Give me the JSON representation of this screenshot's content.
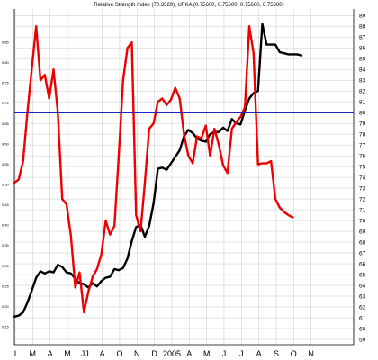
{
  "chart_data": {
    "type": "line",
    "title": "Relative Strength Index (70.3529), UFKA (0.75600, 0.75600, 0.75600, 0.75600)",
    "x_labels": [
      "I",
      "M",
      "A",
      "M",
      "JJ",
      "A",
      "O",
      "N",
      "D",
      "2005",
      "A",
      "M",
      "J",
      "J",
      "A",
      "S",
      "O",
      "N"
    ],
    "y_left_ticks": [
      "0.15",
      "0.20",
      "0.25",
      "0.30",
      "0.35",
      "0.40",
      "0.45",
      "0.50",
      "0.55",
      "0.60",
      "0.65",
      "0.70",
      "0.75",
      "0.80",
      "0.85"
    ],
    "y_right_ticks": [
      "59",
      "60",
      "61",
      "62",
      "63",
      "64",
      "65",
      "66",
      "67",
      "68",
      "69",
      "70",
      "71",
      "72",
      "73",
      "74",
      "75",
      "76",
      "77",
      "78",
      "79",
      "80",
      "81",
      "82",
      "83",
      "84",
      "85",
      "86",
      "87",
      "88",
      "89"
    ],
    "y_right_range": [
      58.5,
      89.6
    ],
    "x_range": [
      0,
      19.5
    ],
    "grid": true,
    "reference_line": {
      "value": 80,
      "color": "#2222bb"
    },
    "series": [
      {
        "color": "#000000",
        "x": [
          0,
          0.25,
          0.5,
          0.75,
          1.0,
          1.25,
          1.5,
          1.75,
          2.0,
          2.25,
          2.5,
          2.75,
          3.0,
          3.25,
          3.5,
          3.75,
          4.0,
          4.25,
          4.5,
          4.75,
          5.0,
          5.25,
          5.5,
          5.75,
          6.0,
          6.25,
          6.5,
          6.75,
          7.0,
          7.25,
          7.5,
          7.75,
          8.0,
          8.25,
          8.5,
          8.75,
          9.0,
          9.25,
          9.5,
          9.75,
          10.0,
          10.25,
          10.5,
          10.75,
          11.0,
          11.25,
          11.5,
          11.75,
          12.0,
          12.25,
          12.5,
          12.75,
          13.0,
          13.25,
          13.5,
          13.75,
          14.0,
          14.25,
          14.5,
          14.75,
          15.0,
          15.25,
          15.5,
          15.75,
          16.0,
          16.25,
          16.5
        ],
        "values": [
          61.1,
          61.2,
          61.5,
          62.4,
          63.5,
          64.7,
          65.3,
          65.1,
          65.3,
          65.2,
          65.9,
          65.7,
          65.2,
          65.1,
          64.6,
          64.2,
          64.1,
          63.8,
          64.2,
          63.9,
          64.4,
          64.7,
          64.8,
          65.5,
          65.4,
          65.6,
          66.5,
          68.1,
          69.4,
          69.6,
          68.5,
          69.5,
          71.6,
          74.8,
          74.9,
          74.7,
          75.3,
          75.9,
          76.5,
          77.8,
          78.4,
          78.1,
          77.6,
          77.4,
          77.3,
          78.0,
          78.2,
          78.2,
          78.6,
          78.3,
          79.4,
          79.0,
          78.9,
          80.2,
          81.3,
          81.8,
          82.0,
          88.2,
          86.3,
          86.3,
          86.3,
          85.6,
          85.5,
          85.4,
          85.4,
          85.4,
          85.3
        ]
      },
      {
        "color": "#ee0000",
        "x": [
          0,
          0.25,
          0.5,
          0.75,
          1.0,
          1.25,
          1.5,
          1.75,
          2.0,
          2.25,
          2.5,
          2.75,
          3.0,
          3.25,
          3.5,
          3.75,
          4.0,
          4.25,
          4.5,
          4.75,
          5.0,
          5.25,
          5.5,
          5.75,
          6.0,
          6.25,
          6.5,
          6.75,
          7.0,
          7.25,
          7.5,
          7.75,
          8.0,
          8.25,
          8.5,
          8.75,
          9.0,
          9.25,
          9.5,
          9.75,
          10.0,
          10.25,
          10.5,
          10.75,
          11.0,
          11.25,
          11.5,
          11.75,
          12.0,
          12.25,
          12.5,
          12.75,
          13.0,
          13.25,
          13.5,
          13.75,
          14.0,
          14.25,
          14.5,
          14.75,
          15.0,
          15.25,
          15.5,
          15.75,
          16.0
        ],
        "values": [
          73.5,
          73.8,
          75.5,
          80.0,
          84.0,
          88.0,
          83.0,
          83.5,
          81.3,
          84.0,
          80.0,
          72.0,
          71.5,
          68.6,
          63.8,
          65.2,
          61.5,
          63.4,
          64.8,
          65.5,
          66.9,
          70.0,
          68.7,
          69.5,
          76.0,
          83.0,
          86.0,
          86.5,
          70.5,
          69.0,
          73.5,
          78.5,
          79.0,
          81.0,
          81.3,
          80.7,
          81.2,
          82.3,
          81.3,
          78.0,
          76.0,
          75.3,
          77.8,
          77.6,
          78.8,
          76.0,
          78.5,
          77.0,
          75.1,
          74.4,
          78.5,
          79.1,
          79.6,
          80.5,
          88.0,
          85.5,
          75.2,
          75.3,
          75.3,
          75.5,
          72.0,
          71.2,
          70.8,
          70.5,
          70.3
        ]
      }
    ]
  }
}
